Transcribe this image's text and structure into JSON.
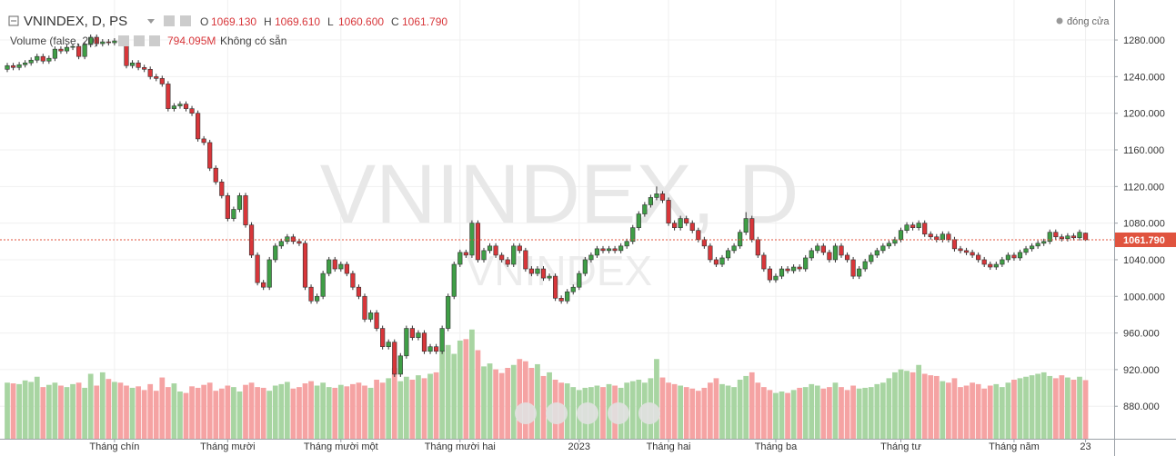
{
  "chart_data": {
    "type": "candlestick",
    "header": {
      "symbol": "VNINDEX, D, PS",
      "ohlc_legend": [
        {
          "key": "O",
          "value": "1069.130"
        },
        {
          "key": "H",
          "value": "1069.610"
        },
        {
          "key": "L",
          "value": "1060.600"
        },
        {
          "key": "C",
          "value": "1061.790"
        }
      ],
      "volume_title": "Volume (false, 20)",
      "volume_value": "794.095M",
      "volume_note": "Không có sẵn",
      "close_toggle": "đóng cửa"
    },
    "watermark": "VNINDEX, D",
    "watermark_symbol": "VNINDEX",
    "last_price_label": "1061.790",
    "up_color": "#3f9e46",
    "down_color": "#d8363a",
    "volume_up_color": "#a8d5a2",
    "volume_down_color": "#f5a3a3",
    "price_line_color": "#e0533e",
    "ylim": [
      844.5,
      1323.7
    ],
    "yticks": [
      {
        "value": 880,
        "label": "880.000"
      },
      {
        "value": 920,
        "label": "920.000"
      },
      {
        "value": 960,
        "label": "960.000"
      },
      {
        "value": 1000,
        "label": "1000.000"
      },
      {
        "value": 1040,
        "label": "1040.000"
      },
      {
        "value": 1080,
        "label": "1080.000"
      },
      {
        "value": 1120,
        "label": "1120.000"
      },
      {
        "value": 1160,
        "label": "1160.000"
      },
      {
        "value": 1200,
        "label": "1200.000"
      },
      {
        "value": 1240,
        "label": "1240.000"
      },
      {
        "value": 1280,
        "label": "1280.000"
      }
    ],
    "xticks": [
      {
        "value": 18,
        "label": "Tháng chín"
      },
      {
        "value": 37,
        "label": "Tháng mười"
      },
      {
        "value": 56,
        "label": "Tháng mười một"
      },
      {
        "value": 76,
        "label": "Tháng mười hai"
      },
      {
        "value": 96,
        "label": "2023"
      },
      {
        "value": 111,
        "label": "Tháng hai"
      },
      {
        "value": 129,
        "label": "Tháng ba"
      },
      {
        "value": 150,
        "label": "Tháng tư"
      },
      {
        "value": 169,
        "label": "Tháng năm"
      },
      {
        "value": 181,
        "label": "23"
      }
    ],
    "vlim": [
      0,
      1600
    ],
    "ohlc": [
      [
        1248,
        1255,
        1245,
        1252
      ],
      [
        1252,
        1255,
        1247,
        1250
      ],
      [
        1250,
        1256,
        1247,
        1253
      ],
      [
        1253,
        1258,
        1250,
        1255
      ],
      [
        1255,
        1261,
        1252,
        1258
      ],
      [
        1258,
        1265,
        1255,
        1262
      ],
      [
        1262,
        1265,
        1254,
        1257
      ],
      [
        1257,
        1263,
        1254,
        1260
      ],
      [
        1260,
        1273,
        1257,
        1270
      ],
      [
        1270,
        1273,
        1265,
        1268
      ],
      [
        1268,
        1275,
        1265,
        1272
      ],
      [
        1272,
        1276,
        1269,
        1273
      ],
      [
        1273,
        1276,
        1259,
        1262
      ],
      [
        1262,
        1278,
        1259,
        1275
      ],
      [
        1275,
        1286,
        1272,
        1283
      ],
      [
        1283,
        1286,
        1273,
        1276
      ],
      [
        1276,
        1281,
        1273,
        1278
      ],
      [
        1278,
        1281,
        1274,
        1277
      ],
      [
        1277,
        1282,
        1274,
        1279
      ],
      [
        1279,
        1282,
        1275,
        1278
      ],
      [
        1278,
        1281,
        1249,
        1252
      ],
      [
        1252,
        1258,
        1249,
        1255
      ],
      [
        1255,
        1258,
        1247,
        1250
      ],
      [
        1250,
        1253,
        1245,
        1248
      ],
      [
        1248,
        1251,
        1237,
        1240
      ],
      [
        1240,
        1243,
        1235,
        1238
      ],
      [
        1238,
        1241,
        1229,
        1232
      ],
      [
        1232,
        1235,
        1202,
        1205
      ],
      [
        1205,
        1211,
        1202,
        1208
      ],
      [
        1208,
        1213,
        1205,
        1210
      ],
      [
        1210,
        1213,
        1202,
        1205
      ],
      [
        1205,
        1208,
        1197,
        1200
      ],
      [
        1200,
        1203,
        1169,
        1172
      ],
      [
        1172,
        1175,
        1165,
        1168
      ],
      [
        1168,
        1171,
        1137,
        1140
      ],
      [
        1140,
        1143,
        1122,
        1125
      ],
      [
        1125,
        1128,
        1107,
        1110
      ],
      [
        1110,
        1113,
        1082,
        1085
      ],
      [
        1085,
        1098,
        1082,
        1095
      ],
      [
        1095,
        1113,
        1092,
        1110
      ],
      [
        1110,
        1113,
        1075,
        1078
      ],
      [
        1078,
        1081,
        1042,
        1045
      ],
      [
        1045,
        1048,
        1012,
        1015
      ],
      [
        1015,
        1018,
        1007,
        1010
      ],
      [
        1010,
        1043,
        1007,
        1040
      ],
      [
        1040,
        1058,
        1037,
        1055
      ],
      [
        1055,
        1063,
        1052,
        1060
      ],
      [
        1060,
        1068,
        1057,
        1065
      ],
      [
        1065,
        1068,
        1057,
        1060
      ],
      [
        1060,
        1063,
        1055,
        1058
      ],
      [
        1058,
        1061,
        1007,
        1010
      ],
      [
        1010,
        1013,
        992,
        995
      ],
      [
        995,
        1003,
        992,
        1000
      ],
      [
        1000,
        1028,
        997,
        1025
      ],
      [
        1025,
        1043,
        1022,
        1040
      ],
      [
        1040,
        1043,
        1027,
        1030
      ],
      [
        1030,
        1038,
        1027,
        1035
      ],
      [
        1035,
        1038,
        1022,
        1025
      ],
      [
        1025,
        1028,
        1007,
        1010
      ],
      [
        1010,
        1013,
        997,
        1000
      ],
      [
        1000,
        1003,
        972,
        975
      ],
      [
        975,
        985,
        972,
        982
      ],
      [
        982,
        985,
        962,
        965
      ],
      [
        965,
        968,
        942,
        945
      ],
      [
        945,
        953,
        942,
        950
      ],
      [
        950,
        953,
        912,
        915
      ],
      [
        915,
        938,
        912,
        935
      ],
      [
        935,
        968,
        932,
        965
      ],
      [
        965,
        968,
        952,
        955
      ],
      [
        955,
        963,
        952,
        960
      ],
      [
        960,
        963,
        937,
        940
      ],
      [
        940,
        948,
        937,
        945
      ],
      [
        945,
        948,
        937,
        940
      ],
      [
        940,
        968,
        937,
        965
      ],
      [
        965,
        1003,
        962,
        1000
      ],
      [
        1000,
        1038,
        997,
        1035
      ],
      [
        1035,
        1051,
        1032,
        1048
      ],
      [
        1048,
        1051,
        1042,
        1045
      ],
      [
        1045,
        1083,
        1042,
        1080
      ],
      [
        1080,
        1083,
        1037,
        1040
      ],
      [
        1040,
        1053,
        1037,
        1050
      ],
      [
        1050,
        1058,
        1047,
        1055
      ],
      [
        1055,
        1058,
        1042,
        1045
      ],
      [
        1045,
        1048,
        1037,
        1040
      ],
      [
        1040,
        1043,
        1032,
        1035
      ],
      [
        1035,
        1058,
        1032,
        1055
      ],
      [
        1055,
        1058,
        1047,
        1050
      ],
      [
        1050,
        1053,
        1027,
        1030
      ],
      [
        1030,
        1033,
        1022,
        1025
      ],
      [
        1025,
        1033,
        1022,
        1030
      ],
      [
        1030,
        1033,
        1017,
        1020
      ],
      [
        1020,
        1025,
        1017,
        1022
      ],
      [
        1022,
        1025,
        995,
        998
      ],
      [
        998,
        1001,
        992,
        995
      ],
      [
        995,
        1008,
        992,
        1005
      ],
      [
        1005,
        1013,
        1002,
        1010
      ],
      [
        1010,
        1028,
        1007,
        1025
      ],
      [
        1025,
        1043,
        1022,
        1040
      ],
      [
        1040,
        1048,
        1037,
        1045
      ],
      [
        1045,
        1055,
        1042,
        1052
      ],
      [
        1052,
        1055,
        1047,
        1050
      ],
      [
        1050,
        1055,
        1047,
        1052
      ],
      [
        1052,
        1055,
        1047,
        1050
      ],
      [
        1050,
        1058,
        1047,
        1055
      ],
      [
        1055,
        1063,
        1052,
        1060
      ],
      [
        1060,
        1078,
        1057,
        1075
      ],
      [
        1075,
        1093,
        1072,
        1090
      ],
      [
        1090,
        1103,
        1087,
        1100
      ],
      [
        1100,
        1111,
        1097,
        1108
      ],
      [
        1108,
        1120,
        1105,
        1112
      ],
      [
        1112,
        1115,
        1102,
        1105
      ],
      [
        1105,
        1108,
        1077,
        1080
      ],
      [
        1080,
        1083,
        1072,
        1075
      ],
      [
        1075,
        1088,
        1072,
        1085
      ],
      [
        1085,
        1088,
        1077,
        1080
      ],
      [
        1080,
        1083,
        1069,
        1072
      ],
      [
        1072,
        1075,
        1059,
        1062
      ],
      [
        1062,
        1065,
        1052,
        1055
      ],
      [
        1055,
        1058,
        1037,
        1040
      ],
      [
        1040,
        1043,
        1032,
        1035
      ],
      [
        1035,
        1045,
        1032,
        1042
      ],
      [
        1042,
        1053,
        1039,
        1050
      ],
      [
        1050,
        1058,
        1047,
        1055
      ],
      [
        1055,
        1073,
        1052,
        1070
      ],
      [
        1070,
        1092,
        1067,
        1085
      ],
      [
        1085,
        1088,
        1059,
        1062
      ],
      [
        1062,
        1065,
        1042,
        1045
      ],
      [
        1045,
        1048,
        1027,
        1030
      ],
      [
        1030,
        1033,
        1015,
        1018
      ],
      [
        1018,
        1025,
        1015,
        1022
      ],
      [
        1022,
        1033,
        1019,
        1030
      ],
      [
        1030,
        1033,
        1025,
        1028
      ],
      [
        1028,
        1035,
        1025,
        1032
      ],
      [
        1032,
        1035,
        1027,
        1030
      ],
      [
        1030,
        1045,
        1027,
        1042
      ],
      [
        1042,
        1053,
        1039,
        1050
      ],
      [
        1050,
        1058,
        1047,
        1055
      ],
      [
        1055,
        1058,
        1045,
        1048
      ],
      [
        1048,
        1051,
        1037,
        1040
      ],
      [
        1040,
        1058,
        1037,
        1055
      ],
      [
        1055,
        1058,
        1042,
        1045
      ],
      [
        1045,
        1048,
        1037,
        1040
      ],
      [
        1040,
        1043,
        1019,
        1022
      ],
      [
        1022,
        1033,
        1019,
        1030
      ],
      [
        1030,
        1041,
        1027,
        1038
      ],
      [
        1038,
        1048,
        1035,
        1045
      ],
      [
        1045,
        1053,
        1042,
        1050
      ],
      [
        1050,
        1058,
        1047,
        1055
      ],
      [
        1055,
        1061,
        1052,
        1058
      ],
      [
        1058,
        1065,
        1055,
        1062
      ],
      [
        1062,
        1075,
        1059,
        1072
      ],
      [
        1072,
        1081,
        1069,
        1078
      ],
      [
        1078,
        1081,
        1072,
        1075
      ],
      [
        1075,
        1083,
        1072,
        1080
      ],
      [
        1080,
        1083,
        1065,
        1068
      ],
      [
        1068,
        1071,
        1062,
        1065
      ],
      [
        1065,
        1068,
        1059,
        1062
      ],
      [
        1062,
        1071,
        1059,
        1068
      ],
      [
        1068,
        1071,
        1059,
        1062
      ],
      [
        1062,
        1065,
        1049,
        1052
      ],
      [
        1052,
        1055,
        1047,
        1050
      ],
      [
        1050,
        1053,
        1045,
        1048
      ],
      [
        1048,
        1051,
        1042,
        1045
      ],
      [
        1045,
        1048,
        1037,
        1040
      ],
      [
        1040,
        1043,
        1032,
        1035
      ],
      [
        1035,
        1038,
        1029,
        1032
      ],
      [
        1032,
        1038,
        1029,
        1035
      ],
      [
        1035,
        1043,
        1032,
        1040
      ],
      [
        1040,
        1048,
        1037,
        1045
      ],
      [
        1045,
        1048,
        1039,
        1042
      ],
      [
        1042,
        1051,
        1039,
        1048
      ],
      [
        1048,
        1055,
        1045,
        1052
      ],
      [
        1052,
        1058,
        1049,
        1055
      ],
      [
        1055,
        1061,
        1052,
        1058
      ],
      [
        1058,
        1063,
        1055,
        1060
      ],
      [
        1060,
        1073,
        1057,
        1070
      ],
      [
        1070,
        1073,
        1062,
        1065
      ],
      [
        1065,
        1068,
        1060,
        1063
      ],
      [
        1063,
        1069,
        1060,
        1066
      ],
      [
        1066,
        1069,
        1061,
        1064
      ],
      [
        1064,
        1073,
        1061,
        1070
      ],
      [
        1069.13,
        1069.61,
        1060.6,
        1061.79
      ]
    ],
    "volume": [
      760,
      750,
      740,
      790,
      770,
      840,
      700,
      730,
      760,
      720,
      700,
      740,
      760,
      690,
      880,
      720,
      900,
      810,
      770,
      760,
      720,
      690,
      710,
      660,
      740,
      650,
      830,
      700,
      750,
      640,
      620,
      710,
      690,
      730,
      760,
      650,
      680,
      720,
      700,
      640,
      730,
      760,
      700,
      690,
      650,
      720,
      740,
      770,
      680,
      700,
      750,
      780,
      720,
      760,
      700,
      690,
      730,
      710,
      740,
      760,
      720,
      690,
      800,
      760,
      820,
      960,
      780,
      840,
      800,
      860,
      820,
      880,
      900,
      1200,
      1270,
      1150,
      1330,
      1350,
      1480,
      1200,
      980,
      1020,
      940,
      890,
      960,
      1000,
      1080,
      1050,
      960,
      1010,
      850,
      900,
      800,
      760,
      750,
      700,
      660,
      690,
      700,
      720,
      700,
      740,
      720,
      690,
      760,
      780,
      800,
      760,
      820,
      1080,
      830,
      760,
      740,
      720,
      700,
      680,
      650,
      690,
      760,
      820,
      740,
      720,
      700,
      800,
      850,
      900,
      760,
      700,
      660,
      620,
      640,
      620,
      660,
      690,
      700,
      740,
      720,
      680,
      700,
      760,
      700,
      660,
      720,
      680,
      690,
      700,
      740,
      760,
      820,
      900,
      940,
      920,
      900,
      1000,
      880,
      860,
      850,
      780,
      760,
      820,
      700,
      720,
      760,
      740,
      680,
      720,
      740,
      700,
      760,
      800,
      820,
      840,
      860,
      880,
      900,
      850,
      820,
      860,
      830,
      800,
      840,
      794.095
    ]
  }
}
